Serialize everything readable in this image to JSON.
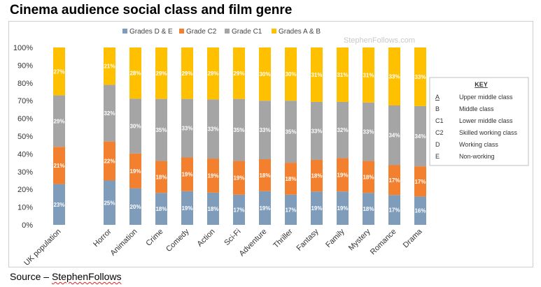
{
  "page": {
    "title": "Cinema audience social class and film genre",
    "source_prefix": "Source – ",
    "source_name": "StephenFollows"
  },
  "chart_data": {
    "type": "bar",
    "stacked": true,
    "watermark": "StephenFollows.com",
    "categories": [
      "UK population",
      "Horror",
      "Animation",
      "Crime",
      "Comedy",
      "Action",
      "Sci-Fi",
      "Adventure",
      "Thriller",
      "Fantasy",
      "Family",
      "Mystery",
      "Romance",
      "Drama"
    ],
    "series": [
      {
        "name": "Grades D & E",
        "color": "#7f9dbb",
        "values": [
          23,
          25,
          20,
          18,
          19,
          18,
          17,
          19,
          17,
          19,
          19,
          18,
          17,
          16
        ]
      },
      {
        "name": "Grade C2",
        "color": "#f2802f",
        "values": [
          21,
          22,
          19,
          18,
          19,
          19,
          19,
          18,
          18,
          18,
          19,
          18,
          17,
          17
        ]
      },
      {
        "name": "Grade C1",
        "color": "#a5a5a5",
        "values": [
          29,
          32,
          30,
          35,
          33,
          33,
          35,
          33,
          35,
          33,
          32,
          33,
          34,
          34
        ]
      },
      {
        "name": "Grades A & B",
        "color": "#ffc000",
        "values": [
          27,
          21,
          28,
          29,
          29,
          29,
          29,
          30,
          30,
          31,
          31,
          31,
          33,
          33
        ]
      }
    ],
    "yticks": [
      "0%",
      "10%",
      "20%",
      "30%",
      "40%",
      "50%",
      "60%",
      "70%",
      "80%",
      "90%",
      "100%"
    ],
    "ylim": [
      0,
      100
    ],
    "legend_position": "top",
    "grid": false,
    "key": {
      "title": "KEY",
      "entries": [
        {
          "code": "A",
          "desc": "Upper middle class"
        },
        {
          "code": "B",
          "desc": "Middle class"
        },
        {
          "code": "C1",
          "desc": "Lower middle class"
        },
        {
          "code": "C2",
          "desc": "Skilled working class"
        },
        {
          "code": "D",
          "desc": "Working class"
        },
        {
          "code": "E",
          "desc": "Non-working"
        }
      ]
    }
  }
}
